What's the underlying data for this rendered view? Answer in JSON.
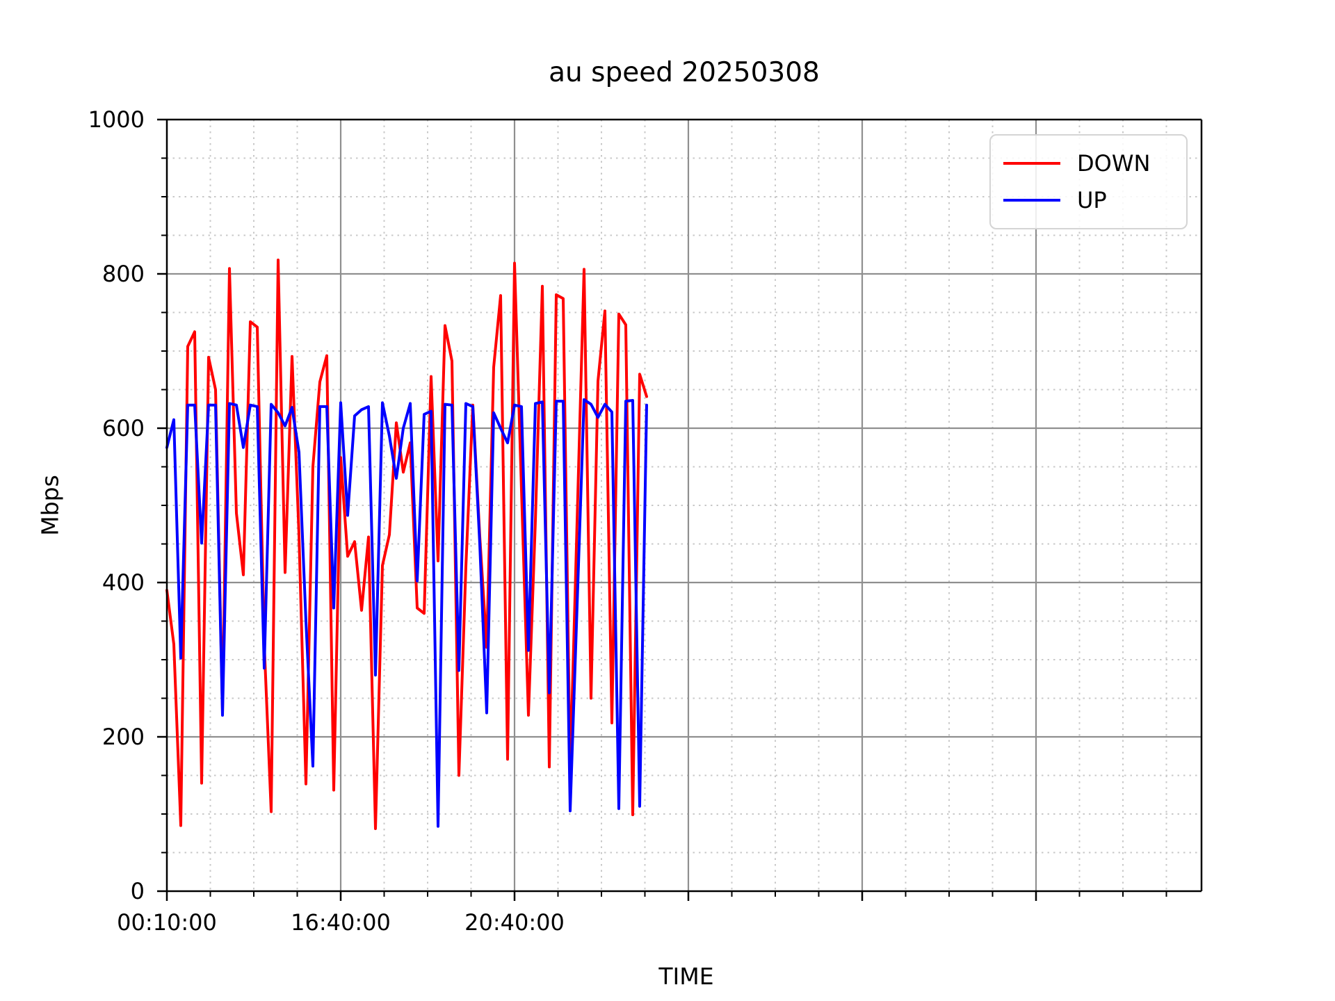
{
  "title": "au speed 20250308",
  "xlabel": "TIME",
  "ylabel": "Mbps",
  "legend": {
    "entries": [
      {
        "label": "DOWN",
        "color": "#ff0000"
      },
      {
        "label": "UP",
        "color": "#0000ff"
      }
    ]
  },
  "axis": {
    "ylim": [
      0,
      1000
    ],
    "ytick_values": [
      0,
      200,
      400,
      600,
      800,
      1000
    ],
    "ytick_labels": [
      "0",
      "200",
      "400",
      "600",
      "800",
      "1000"
    ],
    "y_minor_step": 50,
    "xtick_labels": [
      "00:10:00",
      "16:40:00",
      "20:40:00"
    ],
    "xtick_sample_positions": [
      0,
      25,
      50
    ],
    "x_major_every_samples": 25,
    "x_minor_every_samples": 6.25,
    "grid_major_color": "#8f8f8f",
    "grid_minor_color": "#c8c8c8",
    "spine_color": "#000000"
  },
  "chart_data": {
    "type": "line",
    "title": "au speed 20250308",
    "xlabel": "TIME",
    "ylabel": "Mbps",
    "ylim": [
      0,
      1000
    ],
    "x_description": "speedtest samples in time order; x is sample index 0-69, major tick every 25 samples",
    "x_tick_map": {
      "0": "00:10:00",
      "25": "16:40:00",
      "50": "20:40:00"
    },
    "legend_position": "upper right",
    "grid": "major solid gray + minor dotted",
    "series": [
      {
        "name": "DOWN",
        "color": "#ff0000",
        "values": [
          390,
          320,
          85,
          706,
          725,
          140,
          692,
          650,
          233,
          807,
          490,
          410,
          738,
          731,
          321,
          103,
          818,
          413,
          693,
          462,
          139,
          550,
          660,
          694,
          131,
          562,
          434,
          453,
          364,
          459,
          81,
          422,
          462,
          607,
          543,
          581,
          367,
          360,
          667,
          428,
          733,
          687,
          150,
          420,
          630,
          460,
          316,
          679,
          772,
          171,
          814,
          520,
          228,
          480,
          784,
          161,
          773,
          768,
          155,
          480,
          806,
          250,
          661,
          752,
          218,
          748,
          734,
          99,
          670,
          641
        ]
      },
      {
        "name": "UP",
        "color": "#0000ff",
        "values": [
          575,
          611,
          302,
          630,
          630,
          451,
          630,
          630,
          228,
          632,
          630,
          575,
          630,
          628,
          289,
          631,
          620,
          603,
          627,
          569,
          350,
          162,
          628,
          628,
          367,
          633,
          487,
          616,
          624,
          628,
          280,
          633,
          590,
          535,
          600,
          632,
          402,
          618,
          622,
          84,
          631,
          630,
          286,
          632,
          628,
          450,
          231,
          620,
          600,
          581,
          630,
          628,
          312,
          632,
          634,
          257,
          635,
          635,
          104,
          370,
          637,
          631,
          614,
          631,
          621,
          107,
          635,
          636,
          110,
          630
        ]
      }
    ]
  }
}
